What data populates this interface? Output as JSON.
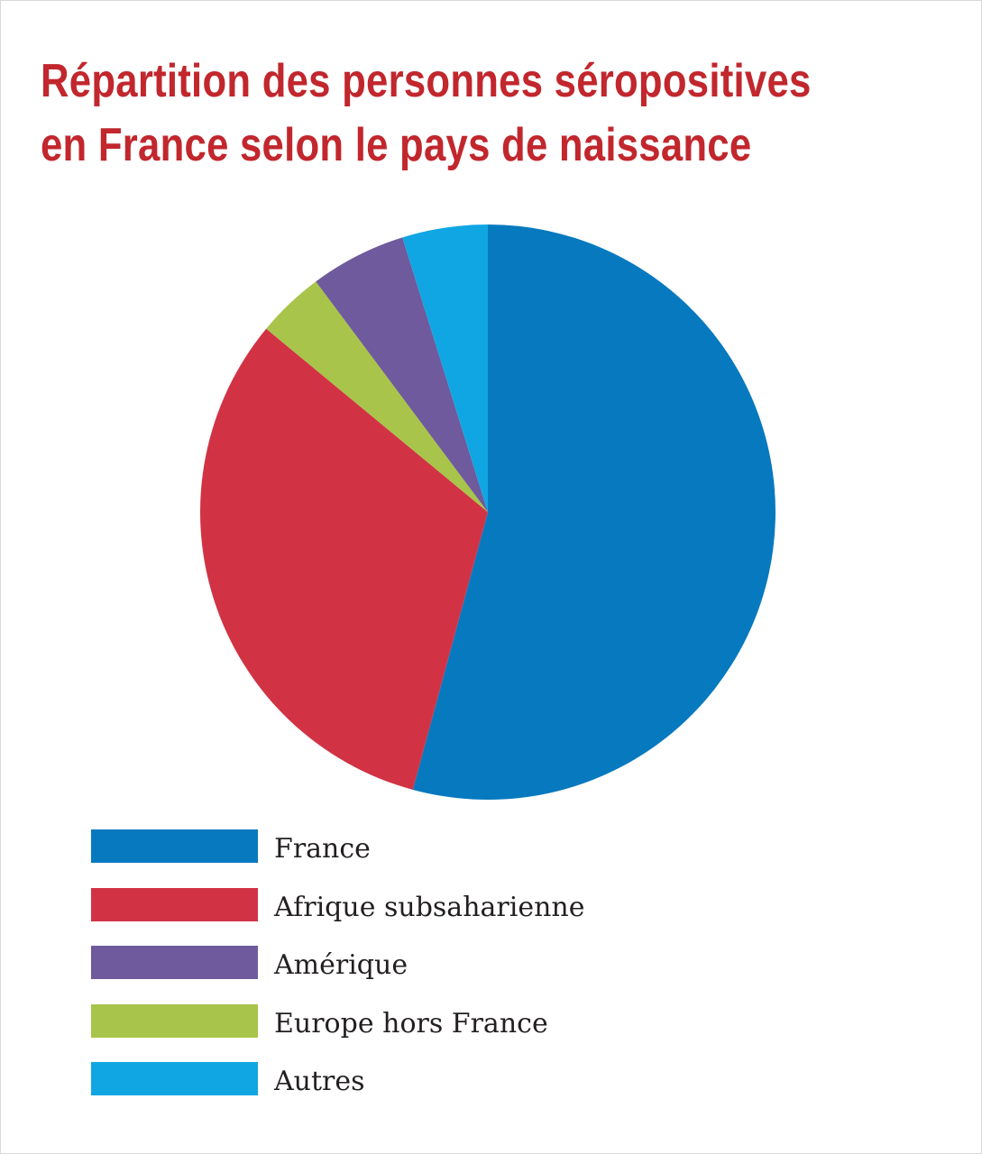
{
  "chart_data": {
    "type": "pie",
    "title": [
      "Répartition des personnes séropositives",
      "en France selon le pays de naissance"
    ],
    "unit": "%",
    "start": "top",
    "direction": "clockwise",
    "slices": [
      {
        "label": "France",
        "value": 54.2,
        "color": "#0779bf"
      },
      {
        "label": "Afrique subsaharienne",
        "value": 31.8,
        "color": "#d13345"
      },
      {
        "label": "Europe hors France",
        "value": 3.8,
        "color": "#a8c44a"
      },
      {
        "label": "Amérique",
        "value": 5.4,
        "color": "#6e5a9c"
      },
      {
        "label": "Autres",
        "value": 4.8,
        "color": "#10a6e3"
      }
    ],
    "legend": {
      "position": "bottom-left",
      "order": [
        "France",
        "Afrique subsaharienne",
        "Amérique",
        "Europe hors France",
        "Autres"
      ]
    }
  }
}
